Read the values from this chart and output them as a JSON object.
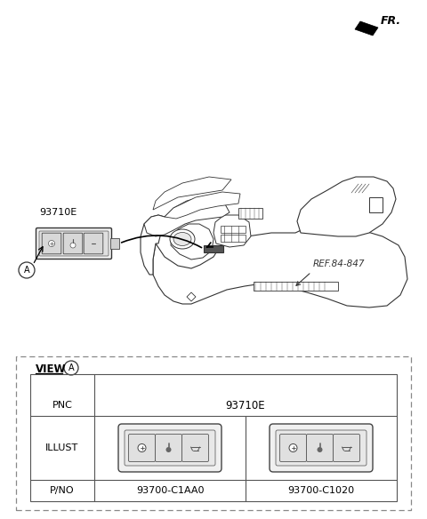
{
  "bg_color": "#ffffff",
  "line_color": "#333333",
  "fr_label": "FR.",
  "ref_label": "REF.84-847",
  "part_label": "93710E",
  "circle_A_label": "A",
  "view_label": "VIEW",
  "pnc_label": "PNC",
  "pnc_value": "93710E",
  "illust_label": "ILLUST",
  "pno_label": "P/NO",
  "pno_values": [
    "93700-C1AA0",
    "93700-C1020"
  ],
  "dash_line": "#444444",
  "table_line": "#555555"
}
